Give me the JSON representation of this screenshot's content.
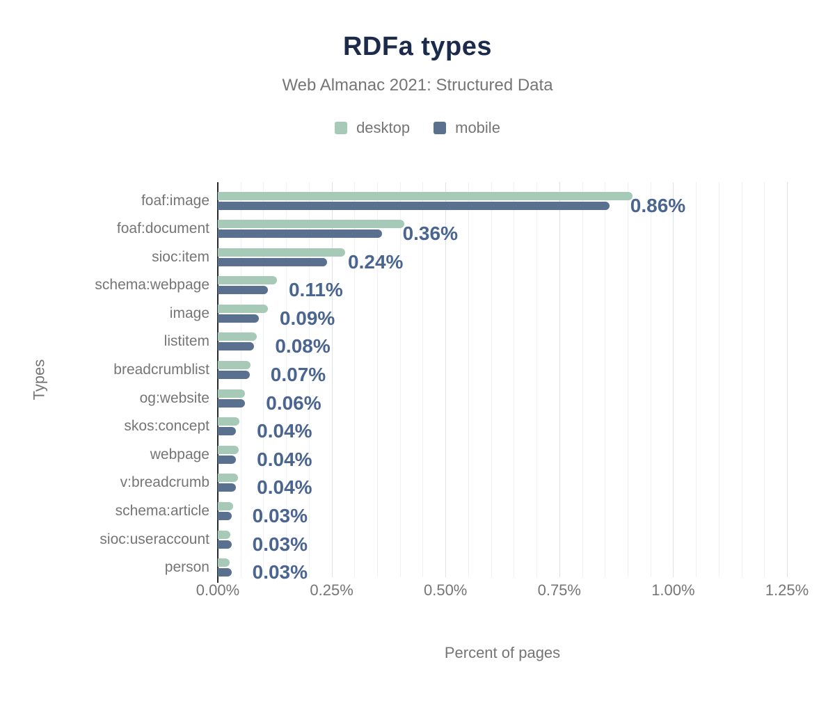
{
  "header": {
    "title": "RDFa types",
    "subtitle": "Web Almanac 2021: Structured Data"
  },
  "legend": [
    {
      "label": "desktop",
      "color": "#a6cab7"
    },
    {
      "label": "mobile",
      "color": "#59718f"
    }
  ],
  "colors": {
    "desktop_bar": "#a6cab7",
    "mobile_bar": "#59718f",
    "value_label": "#4a6590",
    "title_navy": "#1c2b4c",
    "muted_text": "#757575",
    "grid_minor": "#eef1f5",
    "grid_major": "#dde3ea",
    "axis_line": "#24292e"
  },
  "chart_data": {
    "type": "bar",
    "orientation": "horizontal",
    "title": "RDFa types",
    "subtitle": "Web Almanac 2021: Structured Data",
    "xlabel": "Percent of pages",
    "ylabel": "Types",
    "xlim": [
      0,
      1.25
    ],
    "x_ticks": [
      "0.00%",
      "0.25%",
      "0.50%",
      "0.75%",
      "1.00%",
      "1.25%"
    ],
    "x_tick_values": [
      0,
      0.25,
      0.5,
      0.75,
      1.0,
      1.25
    ],
    "grid": "vertical",
    "grid_minor_step": 0.05,
    "grid_major_step": 0.25,
    "legend_position": "top",
    "categories": [
      "foaf:image",
      "foaf:document",
      "sioc:item",
      "schema:webpage",
      "image",
      "listitem",
      "breadcrumblist",
      "og:website",
      "skos:concept",
      "webpage",
      "v:breadcrumb",
      "schema:article",
      "sioc:useraccount",
      "person"
    ],
    "series": [
      {
        "name": "desktop",
        "color": "#a6cab7",
        "values": [
          0.91,
          0.41,
          0.28,
          0.13,
          0.11,
          0.085,
          0.072,
          0.06,
          0.048,
          0.046,
          0.044,
          0.033,
          0.028,
          0.026
        ]
      },
      {
        "name": "mobile",
        "color": "#59718f",
        "values": [
          0.86,
          0.36,
          0.24,
          0.11,
          0.09,
          0.08,
          0.07,
          0.06,
          0.04,
          0.04,
          0.04,
          0.03,
          0.03,
          0.03
        ]
      }
    ],
    "data_labels": [
      "0.86%",
      "0.36%",
      "0.24%",
      "0.11%",
      "0.09%",
      "0.08%",
      "0.07%",
      "0.06%",
      "0.04%",
      "0.04%",
      "0.04%",
      "0.03%",
      "0.03%",
      "0.03%"
    ],
    "data_label_series": "mobile"
  }
}
